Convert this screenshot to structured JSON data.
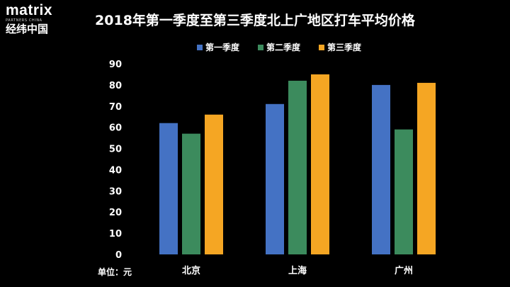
{
  "logo": {
    "word": "matrix",
    "sub": "PARTNERS CHINA",
    "cn": "经纬中国"
  },
  "chart_data": {
    "type": "bar",
    "title": "2018年第一季度至第三季度北上广地区打车平均价格",
    "categories": [
      "北京",
      "上海",
      "广州"
    ],
    "series": [
      {
        "name": "第一季度",
        "color": "#4472C4",
        "values": [
          62,
          71,
          80
        ]
      },
      {
        "name": "第二季度",
        "color": "#3C8B5D",
        "values": [
          57,
          82,
          59
        ]
      },
      {
        "name": "第三季度",
        "color": "#F5A623",
        "values": [
          66,
          85,
          81
        ]
      }
    ],
    "ylim": [
      0,
      90
    ],
    "yticks": [
      0,
      10,
      20,
      30,
      40,
      50,
      60,
      70,
      80,
      90
    ],
    "unit_label": "单位：元",
    "legend": "top-center",
    "grid": false
  }
}
